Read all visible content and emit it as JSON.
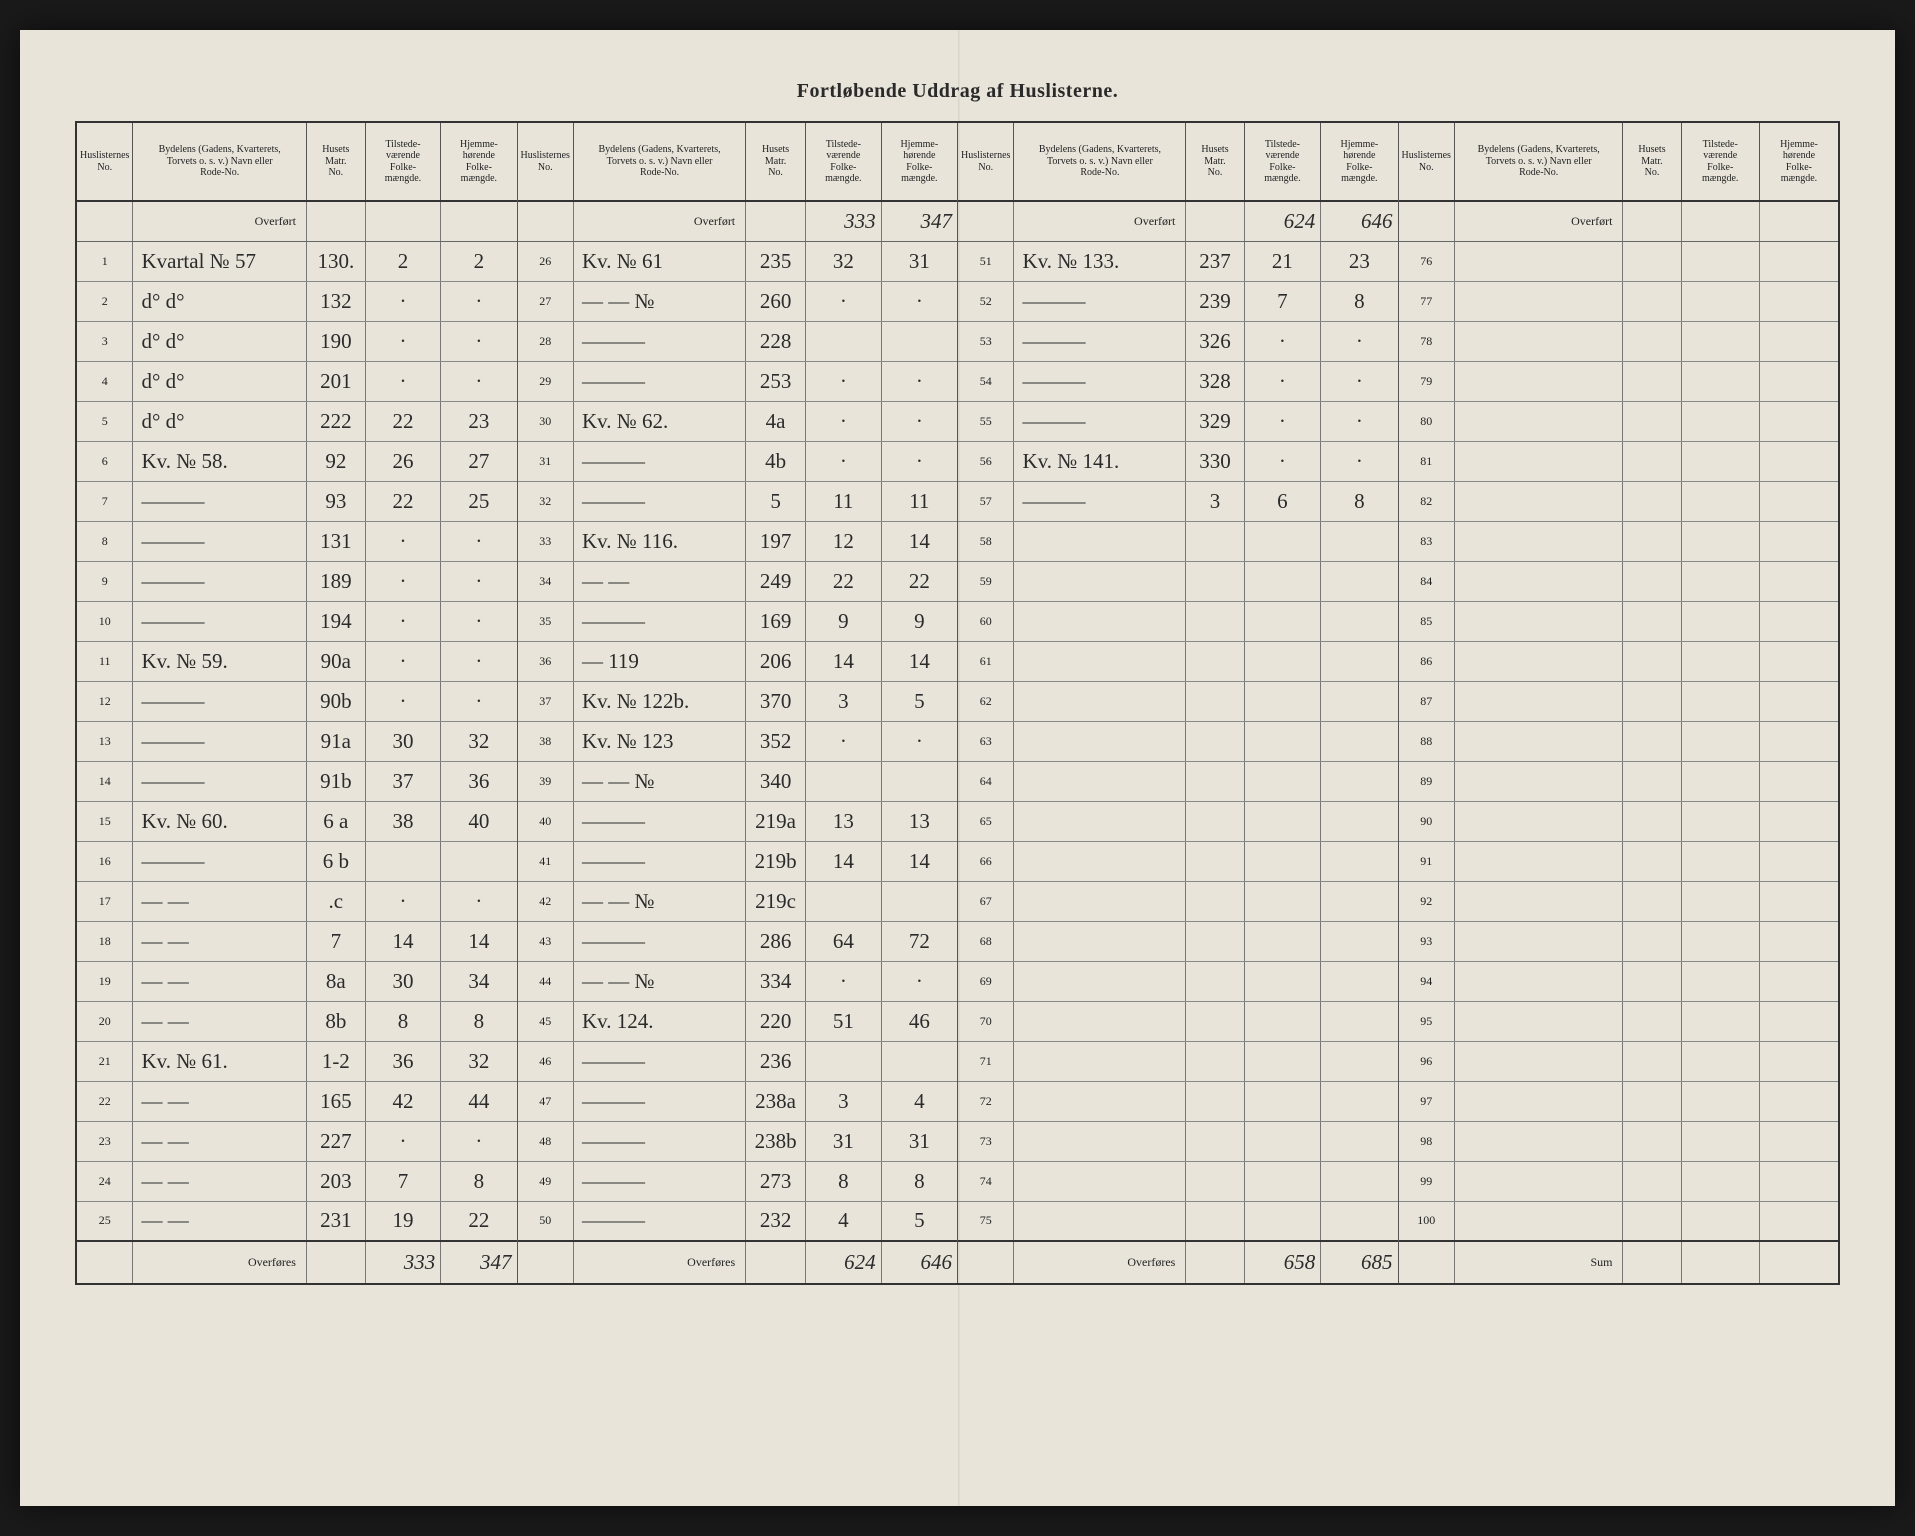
{
  "title": "Fortløbende Uddrag af Huslisterne.",
  "headers": {
    "no": "Huslisternes\nNo.",
    "desc": "Bydelens (Gadens, Kvarterets,\nTorvets o. s. v.) Navn eller\nRode-No.",
    "matr": "Husets\nMatr.\nNo.",
    "pop1": "Tilstede-\nværende\nFolke-\nmængde.",
    "pop2": "Hjemme-\nhørende\nFolke-\nmængde."
  },
  "labels": {
    "overfort": "Overført",
    "overfores": "Overføres",
    "sum": "Sum"
  },
  "blocks": [
    {
      "carry_in": [
        "",
        ""
      ],
      "rows": [
        {
          "n": "1",
          "desc": "Kvartal № 57",
          "matr": "130.",
          "p1": "2",
          "p2": "2"
        },
        {
          "n": "2",
          "desc": "d°     d°",
          "matr": "132",
          "p1": "·",
          "p2": "·"
        },
        {
          "n": "3",
          "desc": "d°     d°",
          "matr": "190",
          "p1": "·",
          "p2": "·"
        },
        {
          "n": "4",
          "desc": "d°     d°",
          "matr": "201",
          "p1": "·",
          "p2": "·"
        },
        {
          "n": "5",
          "desc": "d°     d°",
          "matr": "222",
          "p1": "22",
          "p2": "23"
        },
        {
          "n": "6",
          "desc": "Kv. № 58.",
          "matr": "92",
          "p1": "26",
          "p2": "27"
        },
        {
          "n": "7",
          "desc": "———",
          "matr": "93",
          "p1": "22",
          "p2": "25"
        },
        {
          "n": "8",
          "desc": "———",
          "matr": "131",
          "p1": "·",
          "p2": "·"
        },
        {
          "n": "9",
          "desc": "———",
          "matr": "189",
          "p1": "·",
          "p2": "·"
        },
        {
          "n": "10",
          "desc": "———",
          "matr": "194",
          "p1": "·",
          "p2": "·"
        },
        {
          "n": "11",
          "desc": "Kv. № 59.",
          "matr": "90a",
          "p1": "·",
          "p2": "·"
        },
        {
          "n": "12",
          "desc": "———",
          "matr": "90b",
          "p1": "·",
          "p2": "·"
        },
        {
          "n": "13",
          "desc": "———",
          "matr": "91a",
          "p1": "30",
          "p2": "32"
        },
        {
          "n": "14",
          "desc": "———",
          "matr": "91b",
          "p1": "37",
          "p2": "36"
        },
        {
          "n": "15",
          "desc": "Kv. № 60.",
          "matr": "6 a",
          "p1": "38",
          "p2": "40"
        },
        {
          "n": "16",
          "desc": "———",
          "matr": "6 b",
          "p1": "",
          "p2": ""
        },
        {
          "n": "17",
          "desc": "—   —",
          "matr": ".c",
          "p1": "·",
          "p2": "·"
        },
        {
          "n": "18",
          "desc": "—   —",
          "matr": "7",
          "p1": "14",
          "p2": "14"
        },
        {
          "n": "19",
          "desc": "—   —",
          "matr": "8a",
          "p1": "30",
          "p2": "34"
        },
        {
          "n": "20",
          "desc": "—   —",
          "matr": "8b",
          "p1": "8",
          "p2": "8"
        },
        {
          "n": "21",
          "desc": "Kv. № 61.",
          "matr": "1-2",
          "p1": "36",
          "p2": "32"
        },
        {
          "n": "22",
          "desc": "—   —",
          "matr": "165",
          "p1": "42",
          "p2": "44"
        },
        {
          "n": "23",
          "desc": "—   —",
          "matr": "227",
          "p1": "·",
          "p2": "·"
        },
        {
          "n": "24",
          "desc": "—   —",
          "matr": "203",
          "p1": "7",
          "p2": "8"
        },
        {
          "n": "25",
          "desc": "—   —",
          "matr": "231",
          "p1": "19",
          "p2": "22"
        }
      ],
      "carry_out": [
        "333",
        "347"
      ]
    },
    {
      "carry_in": [
        "333",
        "347"
      ],
      "rows": [
        {
          "n": "26",
          "desc": "Kv. № 61",
          "matr": "235",
          "p1": "32",
          "p2": "31"
        },
        {
          "n": "27",
          "desc": "—   —   №",
          "matr": "260",
          "p1": "·",
          "p2": "·"
        },
        {
          "n": "28",
          "desc": "———",
          "matr": "228",
          "p1": "",
          "p2": ""
        },
        {
          "n": "29",
          "desc": "———",
          "matr": "253",
          "p1": "·",
          "p2": "·"
        },
        {
          "n": "30",
          "desc": "Kv. № 62.",
          "matr": "4a",
          "p1": "·",
          "p2": "·"
        },
        {
          "n": "31",
          "desc": "———",
          "matr": "4b",
          "p1": "·",
          "p2": "·"
        },
        {
          "n": "32",
          "desc": "———",
          "matr": "5",
          "p1": "11",
          "p2": "11"
        },
        {
          "n": "33",
          "desc": "Kv. № 116.",
          "matr": "197",
          "p1": "12",
          "p2": "14"
        },
        {
          "n": "34",
          "desc": "—   —",
          "matr": "249",
          "p1": "22",
          "p2": "22"
        },
        {
          "n": "35",
          "desc": "———",
          "matr": "169",
          "p1": "9",
          "p2": "9"
        },
        {
          "n": "36",
          "desc": "—   119",
          "matr": "206",
          "p1": "14",
          "p2": "14"
        },
        {
          "n": "37",
          "desc": "Kv. № 122b.",
          "matr": "370",
          "p1": "3",
          "p2": "5"
        },
        {
          "n": "38",
          "desc": "Kv. № 123",
          "matr": "352",
          "p1": "·",
          "p2": "·"
        },
        {
          "n": "39",
          "desc": "—   —   №",
          "matr": "340",
          "p1": "",
          "p2": ""
        },
        {
          "n": "40",
          "desc": "———",
          "matr": "219a",
          "p1": "13",
          "p2": "13"
        },
        {
          "n": "41",
          "desc": "———",
          "matr": "219b",
          "p1": "14",
          "p2": "14"
        },
        {
          "n": "42",
          "desc": "—   —   №",
          "matr": "219c",
          "p1": "",
          "p2": ""
        },
        {
          "n": "43",
          "desc": "———",
          "matr": "286",
          "p1": "64",
          "p2": "72"
        },
        {
          "n": "44",
          "desc": "—   —   №",
          "matr": "334",
          "p1": "·",
          "p2": "·"
        },
        {
          "n": "45",
          "desc": "Kv. 124.",
          "matr": "220",
          "p1": "51",
          "p2": "46"
        },
        {
          "n": "46",
          "desc": "———",
          "matr": "236",
          "p1": "",
          "p2": ""
        },
        {
          "n": "47",
          "desc": "———",
          "matr": "238a",
          "p1": "3",
          "p2": "4"
        },
        {
          "n": "48",
          "desc": "———",
          "matr": "238b",
          "p1": "31",
          "p2": "31"
        },
        {
          "n": "49",
          "desc": "———",
          "matr": "273",
          "p1": "8",
          "p2": "8"
        },
        {
          "n": "50",
          "desc": "———",
          "matr": "232",
          "p1": "4",
          "p2": "5"
        }
      ],
      "carry_out": [
        "624",
        "646"
      ]
    },
    {
      "carry_in": [
        "624",
        "646"
      ],
      "rows": [
        {
          "n": "51",
          "desc": "Kv. № 133.",
          "matr": "237",
          "p1": "21",
          "p2": "23"
        },
        {
          "n": "52",
          "desc": "———",
          "matr": "239",
          "p1": "7",
          "p2": "8"
        },
        {
          "n": "53",
          "desc": "———",
          "matr": "326",
          "p1": "·",
          "p2": "·"
        },
        {
          "n": "54",
          "desc": "———",
          "matr": "328",
          "p1": "·",
          "p2": "·"
        },
        {
          "n": "55",
          "desc": "———",
          "matr": "329",
          "p1": "·",
          "p2": "·"
        },
        {
          "n": "56",
          "desc": "Kv. № 141.",
          "matr": "330",
          "p1": "·",
          "p2": "·"
        },
        {
          "n": "57",
          "desc": "———",
          "matr": "3",
          "p1": "6",
          "p2": "8"
        },
        {
          "n": "58",
          "desc": "",
          "matr": "",
          "p1": "",
          "p2": ""
        },
        {
          "n": "59",
          "desc": "",
          "matr": "",
          "p1": "",
          "p2": ""
        },
        {
          "n": "60",
          "desc": "",
          "matr": "",
          "p1": "",
          "p2": ""
        },
        {
          "n": "61",
          "desc": "",
          "matr": "",
          "p1": "",
          "p2": ""
        },
        {
          "n": "62",
          "desc": "",
          "matr": "",
          "p1": "",
          "p2": ""
        },
        {
          "n": "63",
          "desc": "",
          "matr": "",
          "p1": "",
          "p2": ""
        },
        {
          "n": "64",
          "desc": "",
          "matr": "",
          "p1": "",
          "p2": ""
        },
        {
          "n": "65",
          "desc": "",
          "matr": "",
          "p1": "",
          "p2": ""
        },
        {
          "n": "66",
          "desc": "",
          "matr": "",
          "p1": "",
          "p2": ""
        },
        {
          "n": "67",
          "desc": "",
          "matr": "",
          "p1": "",
          "p2": ""
        },
        {
          "n": "68",
          "desc": "",
          "matr": "",
          "p1": "",
          "p2": ""
        },
        {
          "n": "69",
          "desc": "",
          "matr": "",
          "p1": "",
          "p2": ""
        },
        {
          "n": "70",
          "desc": "",
          "matr": "",
          "p1": "",
          "p2": ""
        },
        {
          "n": "71",
          "desc": "",
          "matr": "",
          "p1": "",
          "p2": ""
        },
        {
          "n": "72",
          "desc": "",
          "matr": "",
          "p1": "",
          "p2": ""
        },
        {
          "n": "73",
          "desc": "",
          "matr": "",
          "p1": "",
          "p2": ""
        },
        {
          "n": "74",
          "desc": "",
          "matr": "",
          "p1": "",
          "p2": ""
        },
        {
          "n": "75",
          "desc": "",
          "matr": "",
          "p1": "",
          "p2": ""
        }
      ],
      "carry_out": [
        "658",
        "685"
      ]
    },
    {
      "carry_in": [
        "",
        ""
      ],
      "rows": [
        {
          "n": "76",
          "desc": "",
          "matr": "",
          "p1": "",
          "p2": ""
        },
        {
          "n": "77",
          "desc": "",
          "matr": "",
          "p1": "",
          "p2": ""
        },
        {
          "n": "78",
          "desc": "",
          "matr": "",
          "p1": "",
          "p2": ""
        },
        {
          "n": "79",
          "desc": "",
          "matr": "",
          "p1": "",
          "p2": ""
        },
        {
          "n": "80",
          "desc": "",
          "matr": "",
          "p1": "",
          "p2": ""
        },
        {
          "n": "81",
          "desc": "",
          "matr": "",
          "p1": "",
          "p2": ""
        },
        {
          "n": "82",
          "desc": "",
          "matr": "",
          "p1": "",
          "p2": ""
        },
        {
          "n": "83",
          "desc": "",
          "matr": "",
          "p1": "",
          "p2": ""
        },
        {
          "n": "84",
          "desc": "",
          "matr": "",
          "p1": "",
          "p2": ""
        },
        {
          "n": "85",
          "desc": "",
          "matr": "",
          "p1": "",
          "p2": ""
        },
        {
          "n": "86",
          "desc": "",
          "matr": "",
          "p1": "",
          "p2": ""
        },
        {
          "n": "87",
          "desc": "",
          "matr": "",
          "p1": "",
          "p2": ""
        },
        {
          "n": "88",
          "desc": "",
          "matr": "",
          "p1": "",
          "p2": ""
        },
        {
          "n": "89",
          "desc": "",
          "matr": "",
          "p1": "",
          "p2": ""
        },
        {
          "n": "90",
          "desc": "",
          "matr": "",
          "p1": "",
          "p2": ""
        },
        {
          "n": "91",
          "desc": "",
          "matr": "",
          "p1": "",
          "p2": ""
        },
        {
          "n": "92",
          "desc": "",
          "matr": "",
          "p1": "",
          "p2": ""
        },
        {
          "n": "93",
          "desc": "",
          "matr": "",
          "p1": "",
          "p2": ""
        },
        {
          "n": "94",
          "desc": "",
          "matr": "",
          "p1": "",
          "p2": ""
        },
        {
          "n": "95",
          "desc": "",
          "matr": "",
          "p1": "",
          "p2": ""
        },
        {
          "n": "96",
          "desc": "",
          "matr": "",
          "p1": "",
          "p2": ""
        },
        {
          "n": "97",
          "desc": "",
          "matr": "",
          "p1": "",
          "p2": ""
        },
        {
          "n": "98",
          "desc": "",
          "matr": "",
          "p1": "",
          "p2": ""
        },
        {
          "n": "99",
          "desc": "",
          "matr": "",
          "p1": "",
          "p2": ""
        },
        {
          "n": "100",
          "desc": "",
          "matr": "",
          "p1": "",
          "p2": ""
        }
      ],
      "carry_out": [
        "",
        ""
      ],
      "footer_label_key": "sum"
    }
  ]
}
